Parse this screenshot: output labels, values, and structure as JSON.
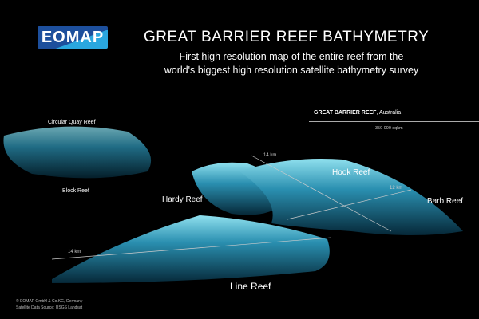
{
  "logo": "EOMAP",
  "title": "GREAT BARRIER REEF BATHYMETRY",
  "subtitle_line1": "First high resolution map of the entire reef from the",
  "subtitle_line2": "world's biggest high resolution satellite bathymetry survey",
  "info": {
    "name": "GREAT BARRIER REEF",
    "country": ", Australia",
    "area": "350 000 sqkm"
  },
  "reefs": {
    "circular_quay": "Circular Quay Reef",
    "block": "Block Reef",
    "hardy": "Hardy Reef",
    "hook": "Hook Reef",
    "barb": "Barb Reef",
    "line": "Line Reef"
  },
  "distances": {
    "hook": "14 km",
    "barb": "12 km",
    "line": "14 km"
  },
  "credits": {
    "copyright": "© EOMAP GmbH & Co.KG, Germany",
    "source": "Satellite Data Source: USGS Landsat"
  },
  "colors": {
    "reef_shallow": "#7fd4e6",
    "reef_deep": "#0e4a6a",
    "logo_blue": "#1d4f9c"
  }
}
